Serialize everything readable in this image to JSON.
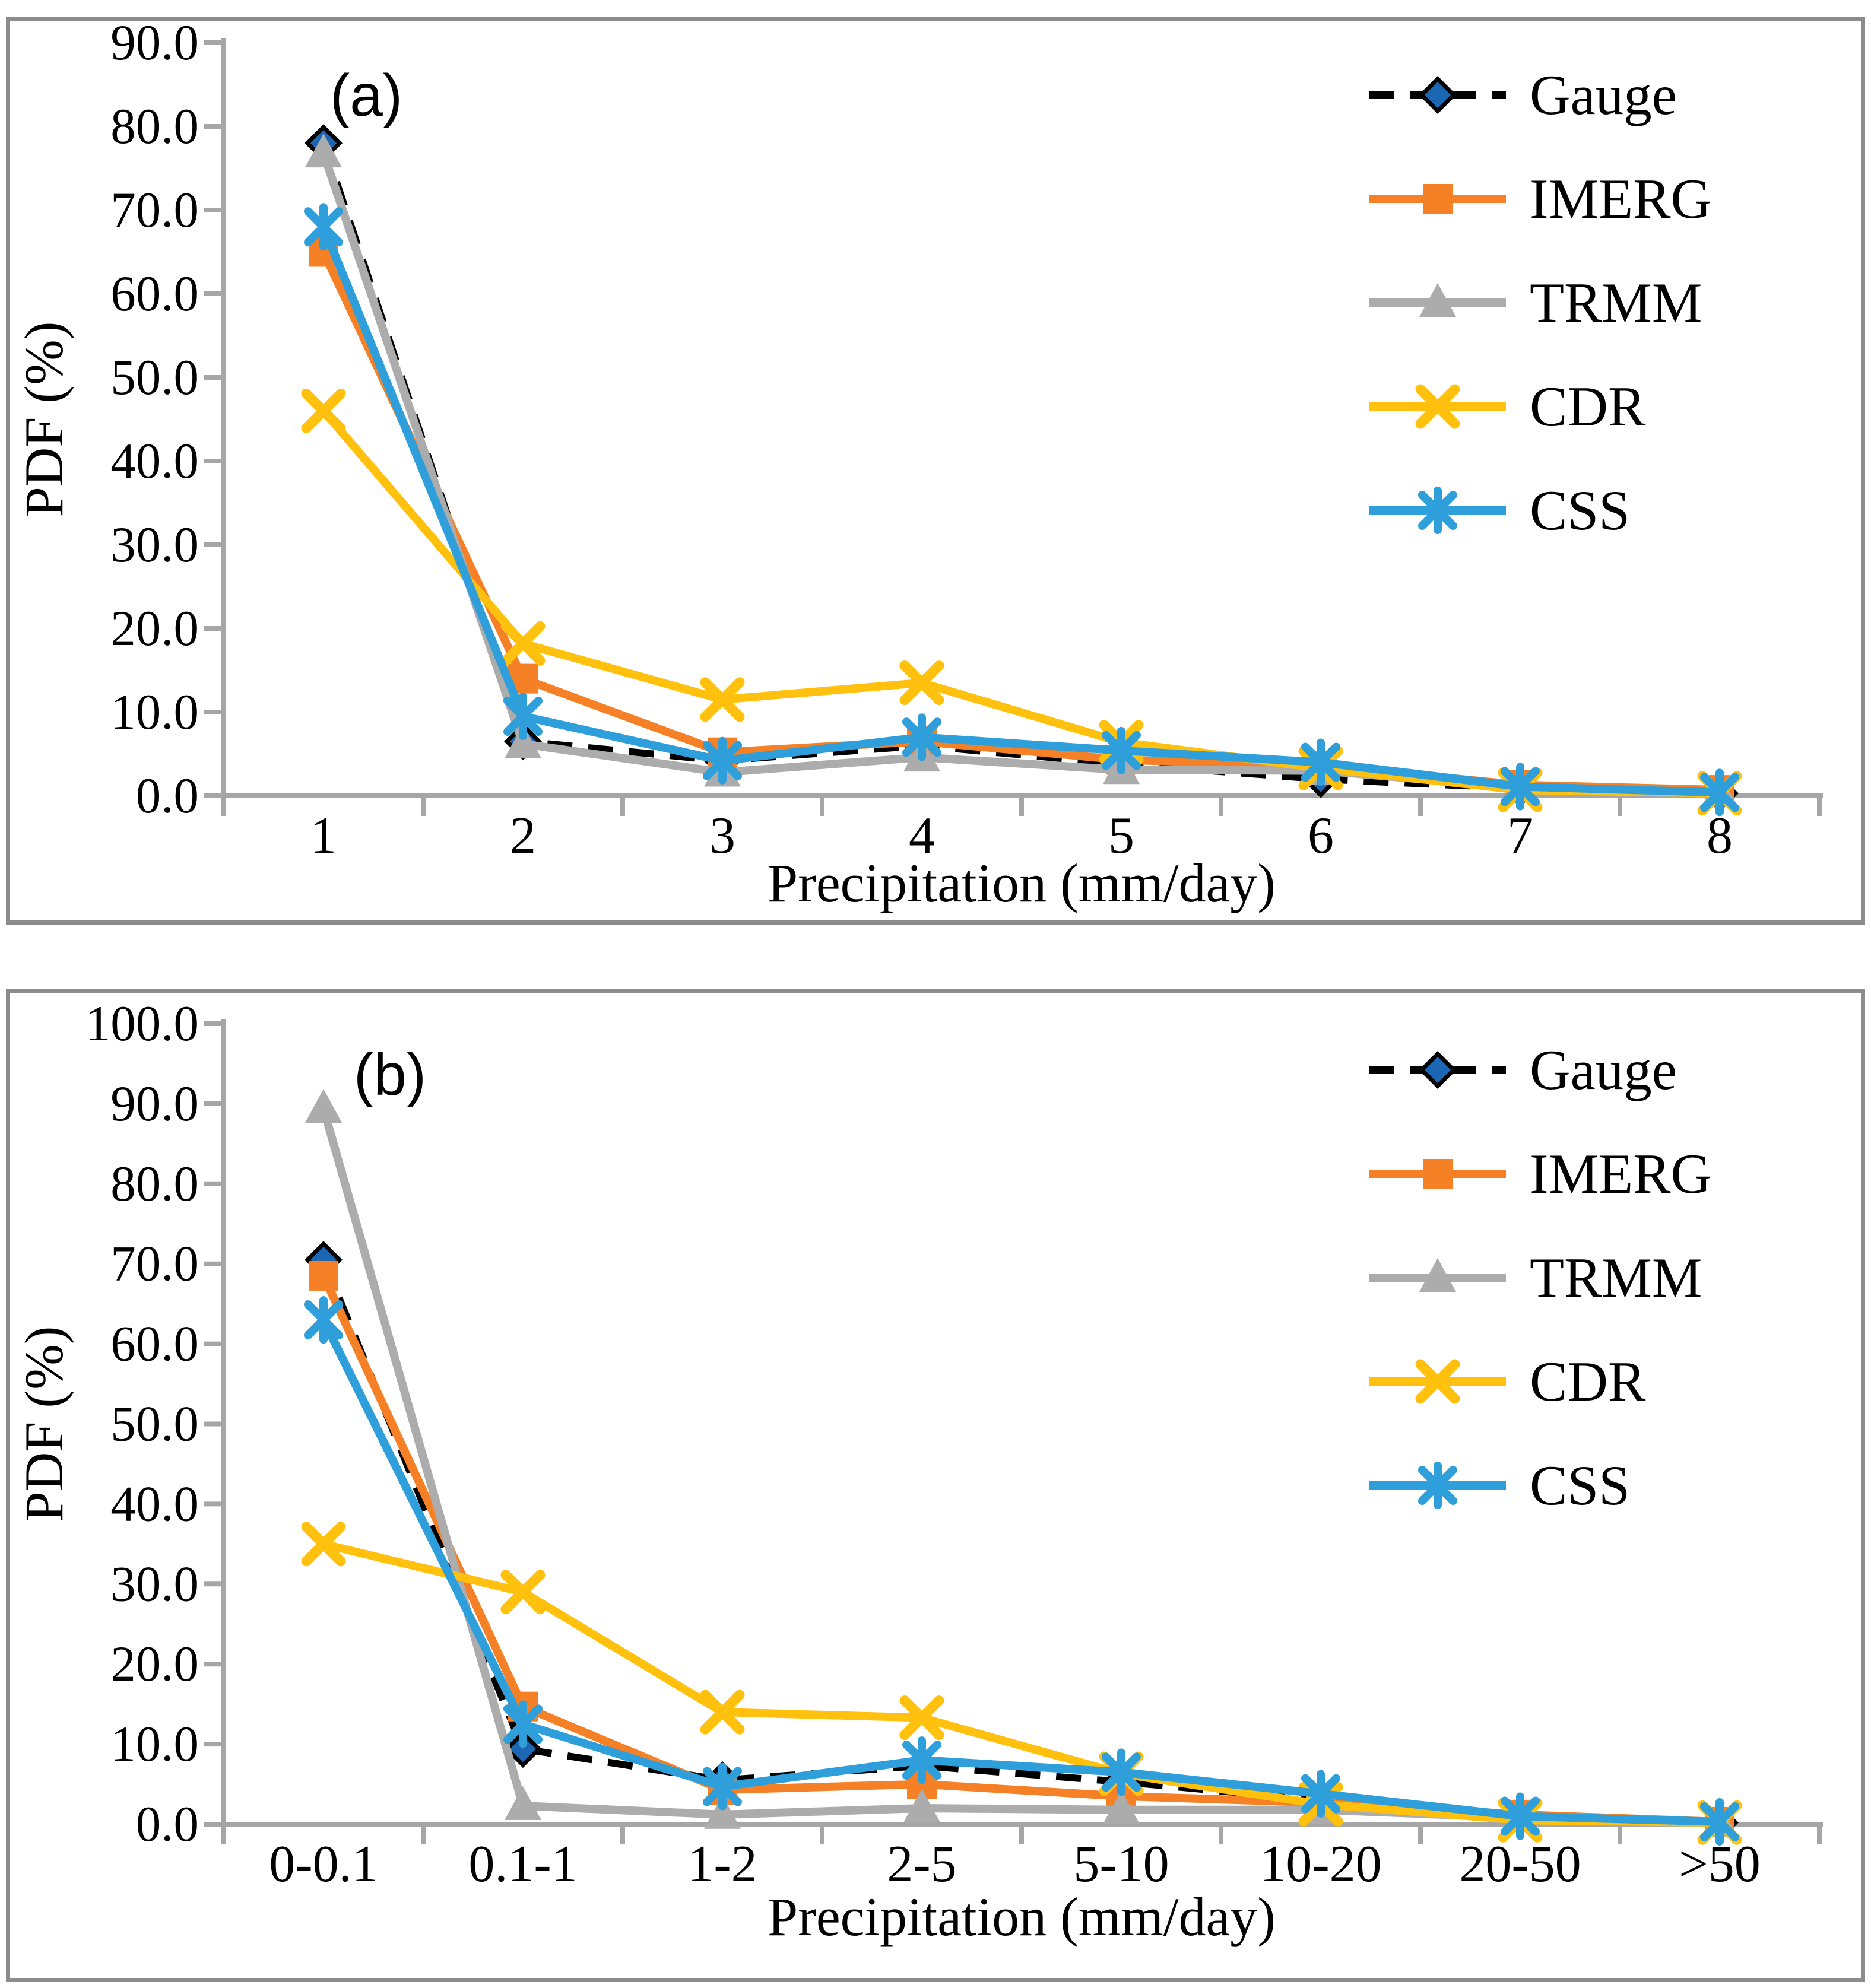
{
  "figure": {
    "panels": [
      {
        "id": "a",
        "panel_label": "(a)"
      },
      {
        "id": "b",
        "panel_label": "(b)"
      }
    ]
  },
  "colors": {
    "gauge_line": "#000000",
    "gauge_marker_fill": "#1B67B3",
    "imerg": "#F58026",
    "trmm": "#ACACAC",
    "cdr": "#FFC10E",
    "css": "#2E9FDA",
    "axis": "#A6A6A6",
    "panel_border": "#8C8C8C",
    "text": "#000000"
  },
  "chart_data": [
    {
      "type": "line",
      "panel_label": "(a)",
      "title": "",
      "xlabel": "Precipitation (mm/day)",
      "ylabel": "PDF (%)",
      "ylim": [
        0,
        90
      ],
      "ytick_step": 10,
      "ytick_format_decimals": 1,
      "grid": false,
      "legend_position": "top-right-inside",
      "categories": [
        "1",
        "2",
        "3",
        "4",
        "5",
        "6",
        "7",
        "8"
      ],
      "series": [
        {
          "name": "Gauge",
          "marker": "diamond",
          "dash": true,
          "color": "#000000",
          "marker_color": "#1B67B3",
          "values": [
            78.0,
            6.5,
            4.2,
            6.0,
            3.8,
            2.0,
            0.9,
            0.3
          ]
        },
        {
          "name": "IMERG",
          "marker": "square",
          "dash": false,
          "color": "#F58026",
          "marker_color": "#F58026",
          "values": [
            65.0,
            14.0,
            5.2,
            6.5,
            4.3,
            3.6,
            1.3,
            0.7
          ]
        },
        {
          "name": "TRMM",
          "marker": "triangle",
          "dash": false,
          "color": "#ACACAC",
          "marker_color": "#ACACAC",
          "values": [
            76.8,
            6.2,
            2.8,
            4.6,
            3.1,
            3.0,
            1.0,
            0.4
          ]
        },
        {
          "name": "CDR",
          "marker": "x",
          "dash": false,
          "color": "#FFC10E",
          "marker_color": "#FFC10E",
          "values": [
            46.0,
            18.2,
            11.5,
            13.5,
            6.4,
            3.3,
            0.7,
            0.3
          ]
        },
        {
          "name": "CSS",
          "marker": "asterisk",
          "dash": false,
          "color": "#2E9FDA",
          "marker_color": "#2E9FDA",
          "values": [
            68.0,
            9.5,
            4.2,
            7.0,
            5.4,
            4.0,
            1.1,
            0.4
          ]
        }
      ]
    },
    {
      "type": "line",
      "panel_label": "(b)",
      "title": "",
      "xlabel": "Precipitation (mm/day)",
      "ylabel": "PDF (%)",
      "ylim": [
        0,
        100
      ],
      "ytick_step": 10,
      "ytick_format_decimals": 1,
      "grid": false,
      "legend_position": "top-right-inside",
      "categories": [
        "0-0.1",
        "0.1-1",
        "1-2",
        "2-5",
        "5-10",
        "10-20",
        "20-50",
        ">50"
      ],
      "series": [
        {
          "name": "Gauge",
          "marker": "diamond",
          "dash": true,
          "color": "#000000",
          "marker_color": "#1B67B3",
          "values": [
            70.5,
            9.4,
            5.5,
            7.3,
            5.3,
            3.0,
            0.9,
            0.2
          ]
        },
        {
          "name": "IMERG",
          "marker": "square",
          "dash": false,
          "color": "#F58026",
          "marker_color": "#F58026",
          "values": [
            68.5,
            14.7,
            4.3,
            5.0,
            3.5,
            2.7,
            1.2,
            0.3
          ]
        },
        {
          "name": "TRMM",
          "marker": "triangle",
          "dash": false,
          "color": "#ACACAC",
          "marker_color": "#ACACAC",
          "values": [
            89.4,
            2.3,
            1.2,
            2.0,
            1.8,
            1.8,
            0.8,
            0.2
          ]
        },
        {
          "name": "CDR",
          "marker": "x",
          "dash": false,
          "color": "#FFC10E",
          "marker_color": "#FFC10E",
          "values": [
            35.0,
            29.0,
            14.0,
            13.3,
            6.3,
            2.5,
            0.5,
            0.2
          ]
        },
        {
          "name": "CSS",
          "marker": "asterisk",
          "dash": false,
          "color": "#2E9FDA",
          "marker_color": "#2E9FDA",
          "values": [
            63.0,
            12.5,
            4.7,
            8.0,
            6.5,
            3.8,
            1.0,
            0.3
          ]
        }
      ]
    }
  ]
}
